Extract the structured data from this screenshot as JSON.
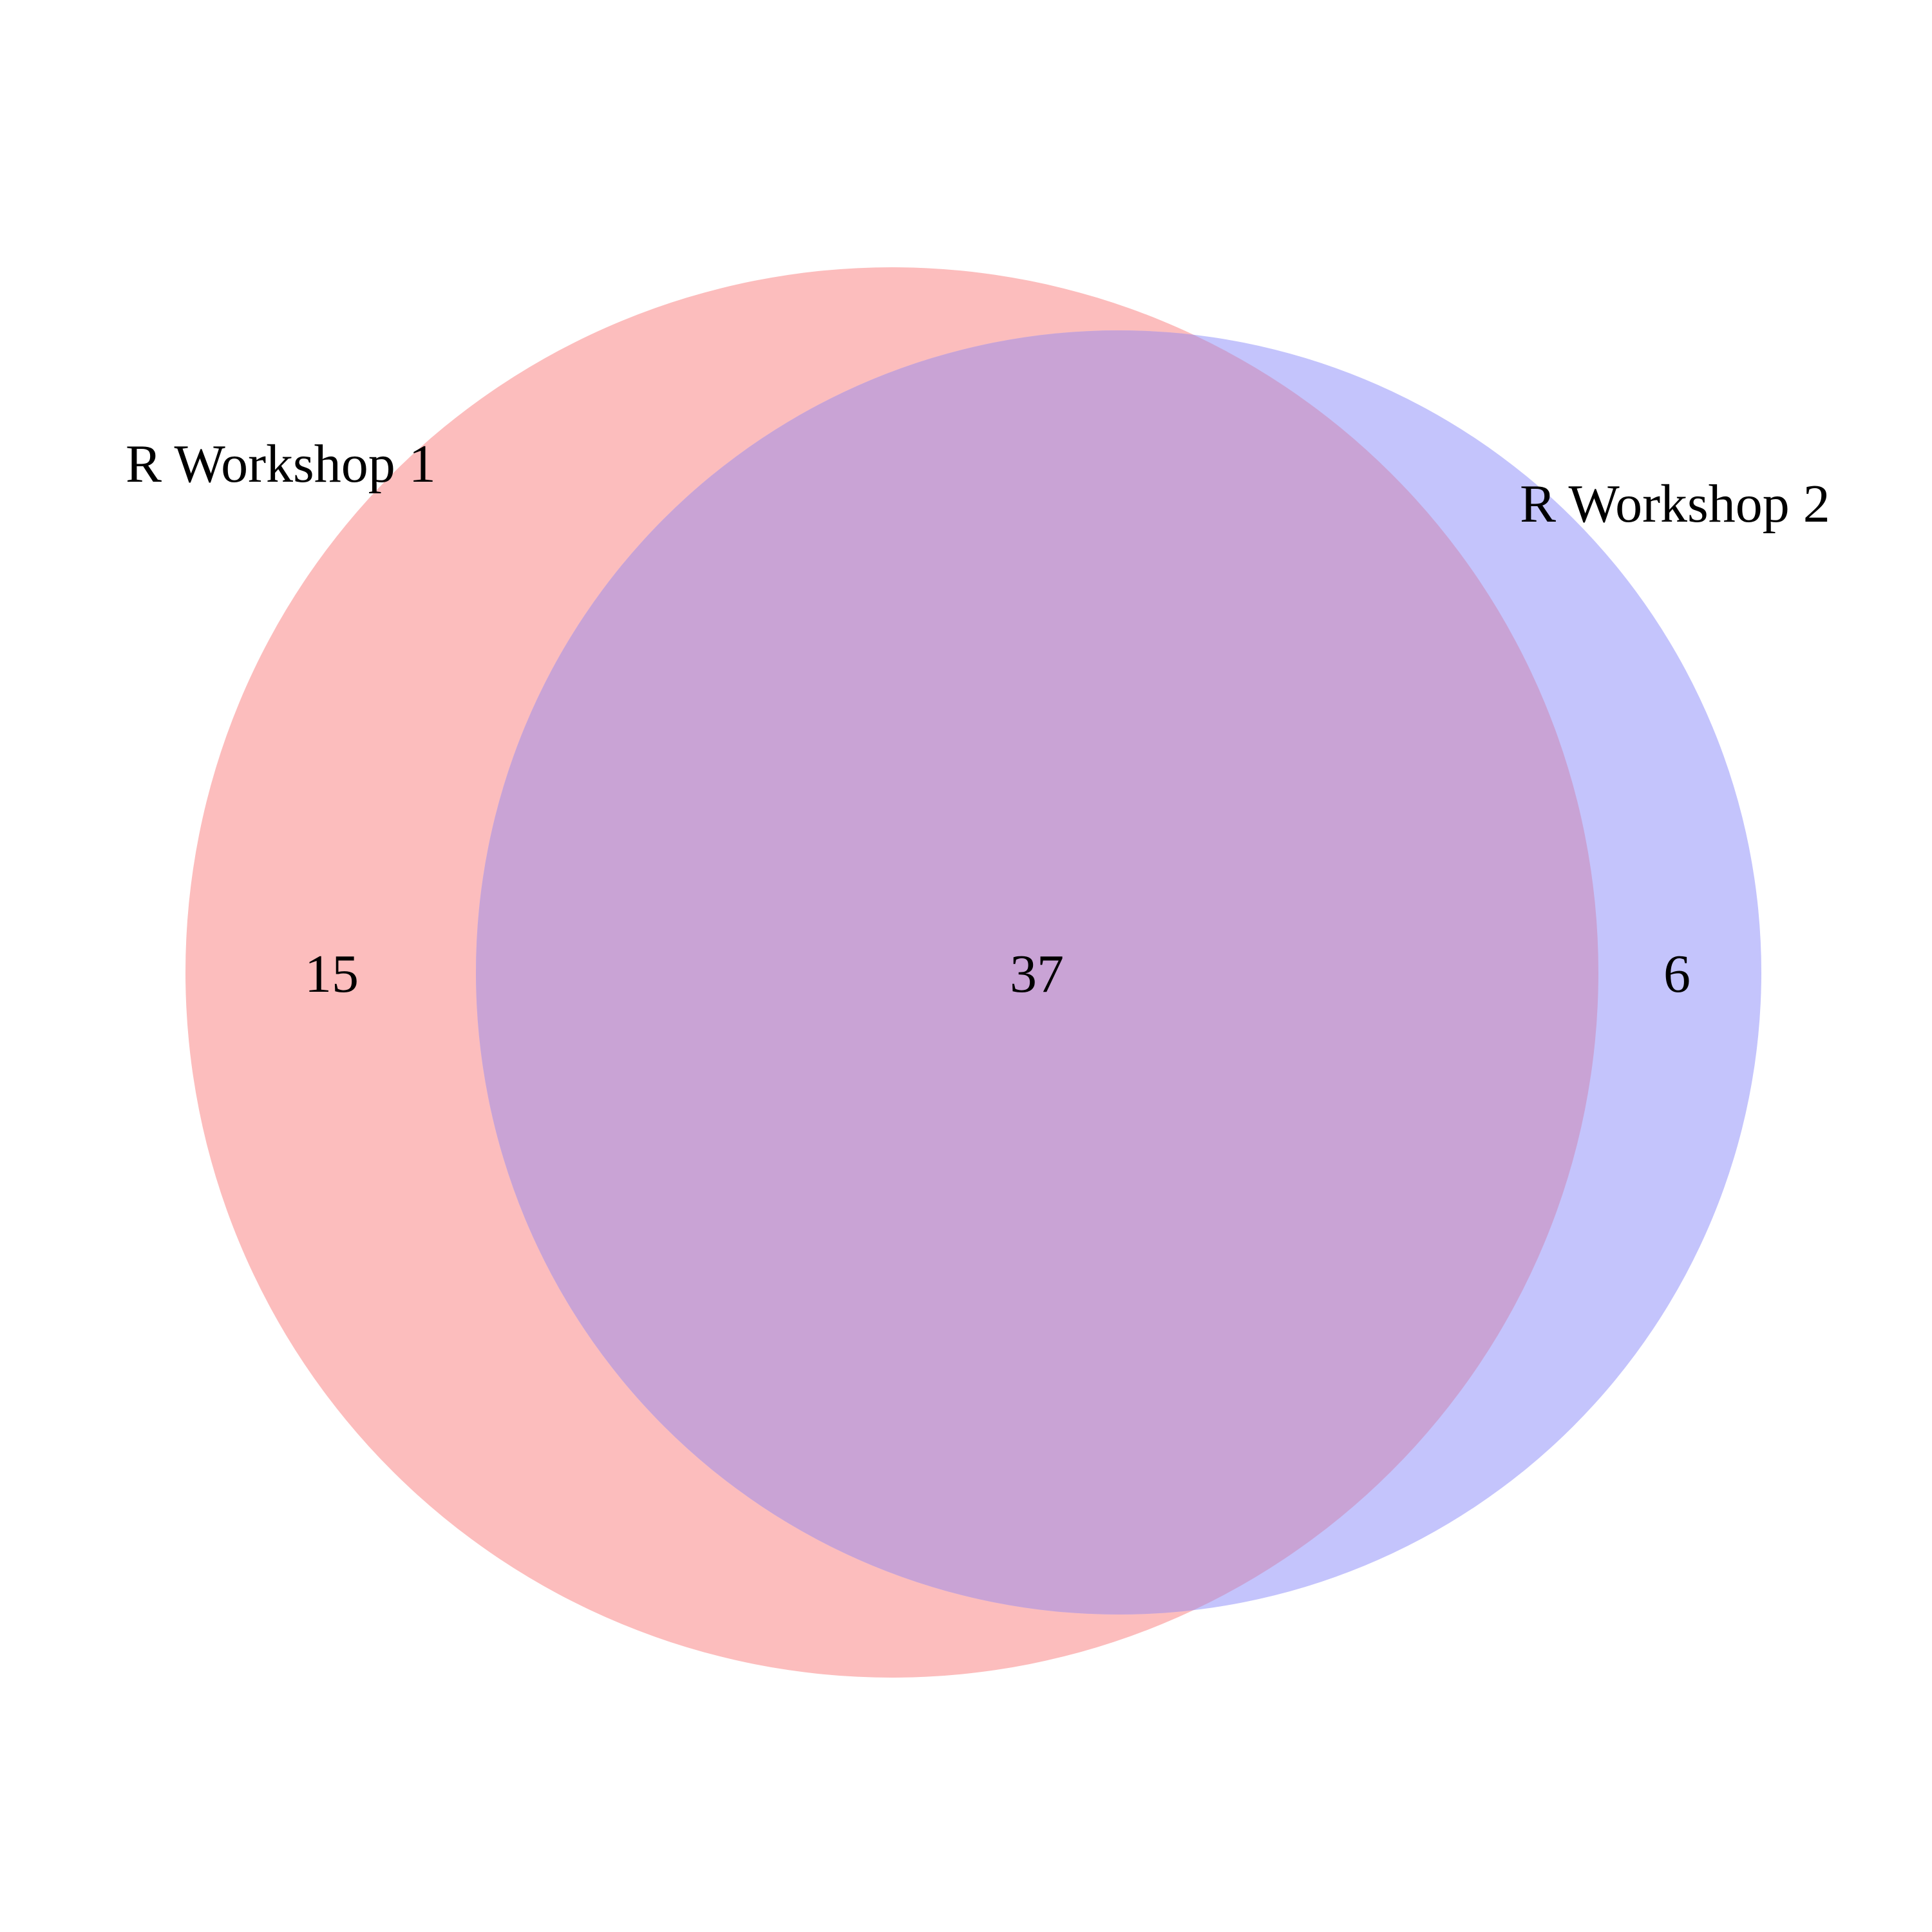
{
  "venn": {
    "sets": [
      {
        "label": "R Workshop 1",
        "color": "#fcbdbd"
      },
      {
        "label": "R Workshop 2",
        "color": "#c4c4fc"
      }
    ],
    "overlap_color": "#c9a3d5",
    "counts": {
      "only_set1": "15",
      "both": "37",
      "only_set2": "6"
    }
  },
  "chart_data": {
    "type": "venn",
    "sets": [
      "R Workshop 1",
      "R Workshop 2"
    ],
    "regions": [
      {
        "sets": [
          "R Workshop 1"
        ],
        "value": 15
      },
      {
        "sets": [
          "R Workshop 1",
          "R Workshop 2"
        ],
        "value": 37
      },
      {
        "sets": [
          "R Workshop 2"
        ],
        "value": 6
      }
    ]
  }
}
